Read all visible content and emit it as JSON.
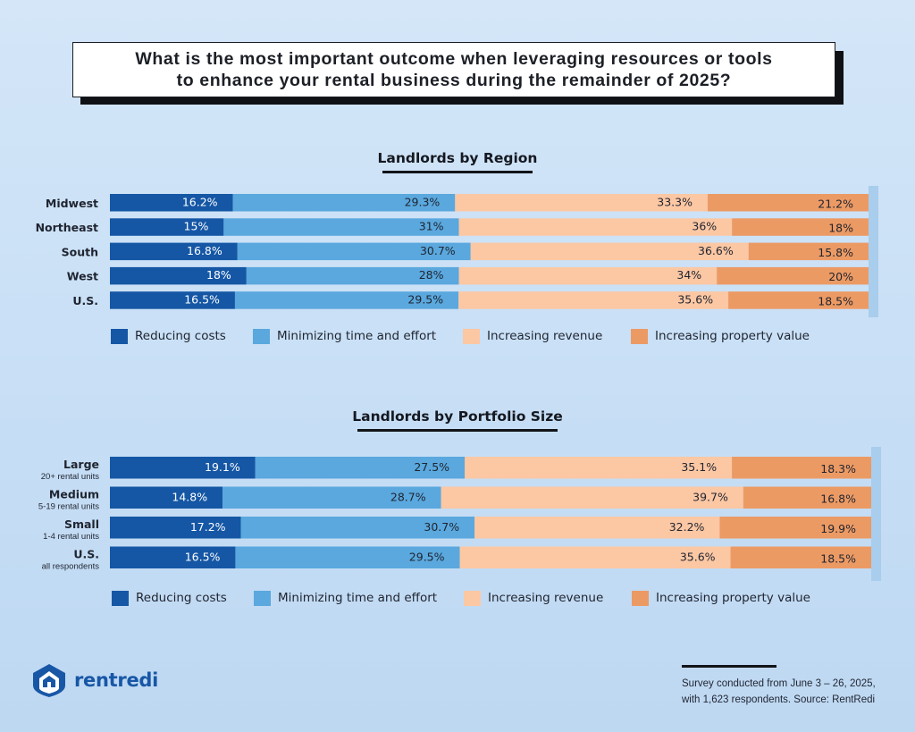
{
  "title": {
    "line1": "What is the most important outcome when leveraging resources or tools",
    "line2": "to enhance your rental business during the remainder of 2025?"
  },
  "colors": {
    "reducing_costs": "#1557a5",
    "minimizing_time": "#5aa8de",
    "increasing_revenue": "#fcc7a3",
    "increasing_property_value": "#ec9a64",
    "logo": "#1857a6"
  },
  "legend": {
    "reducing_costs": "Reducing costs",
    "minimizing_time": "Minimizing time and effort",
    "increasing_revenue": "Increasing revenue",
    "increasing_property_value": "Increasing property value"
  },
  "chart_data": [
    {
      "type": "bar",
      "stacked": true,
      "orientation": "horizontal",
      "title": "Landlords by Region",
      "categories": [
        {
          "label": "Midwest",
          "sublabel": ""
        },
        {
          "label": "Northeast",
          "sublabel": ""
        },
        {
          "label": "South",
          "sublabel": ""
        },
        {
          "label": "West",
          "sublabel": ""
        },
        {
          "label": "U.S.",
          "sublabel": ""
        }
      ],
      "series": [
        {
          "name": "Reducing costs",
          "values": [
            16.2,
            15,
            16.8,
            18,
            16.5
          ]
        },
        {
          "name": "Minimizing time and effort",
          "values": [
            29.3,
            31,
            30.7,
            28,
            29.5
          ]
        },
        {
          "name": "Increasing revenue",
          "values": [
            33.3,
            36,
            36.6,
            34,
            35.6
          ]
        },
        {
          "name": "Increasing property value",
          "values": [
            21.2,
            18,
            15.8,
            20,
            18.5
          ]
        }
      ],
      "unit": "%"
    },
    {
      "type": "bar",
      "stacked": true,
      "orientation": "horizontal",
      "title": "Landlords by Portfolio Size",
      "categories": [
        {
          "label": "Large",
          "sublabel": "20+ rental units"
        },
        {
          "label": "Medium",
          "sublabel": "5-19 rental units"
        },
        {
          "label": "Small",
          "sublabel": "1-4 rental units"
        },
        {
          "label": "U.S.",
          "sublabel": "all respondents"
        }
      ],
      "series": [
        {
          "name": "Reducing costs",
          "values": [
            19.1,
            14.8,
            17.2,
            16.5
          ]
        },
        {
          "name": "Minimizing time and effort",
          "values": [
            27.5,
            28.7,
            30.7,
            29.5
          ]
        },
        {
          "name": "Increasing revenue",
          "values": [
            35.1,
            39.7,
            32.2,
            35.6
          ]
        },
        {
          "name": "Increasing property value",
          "values": [
            18.3,
            16.8,
            19.9,
            18.5
          ]
        }
      ],
      "unit": "%"
    }
  ],
  "logo": {
    "name": "rentredi",
    "icon": "house-shield-icon"
  },
  "footer": {
    "line1": "Survey conducted from June 3 – 26, 2025,",
    "line2": "with 1,623 respondents. Source: RentRedi"
  }
}
